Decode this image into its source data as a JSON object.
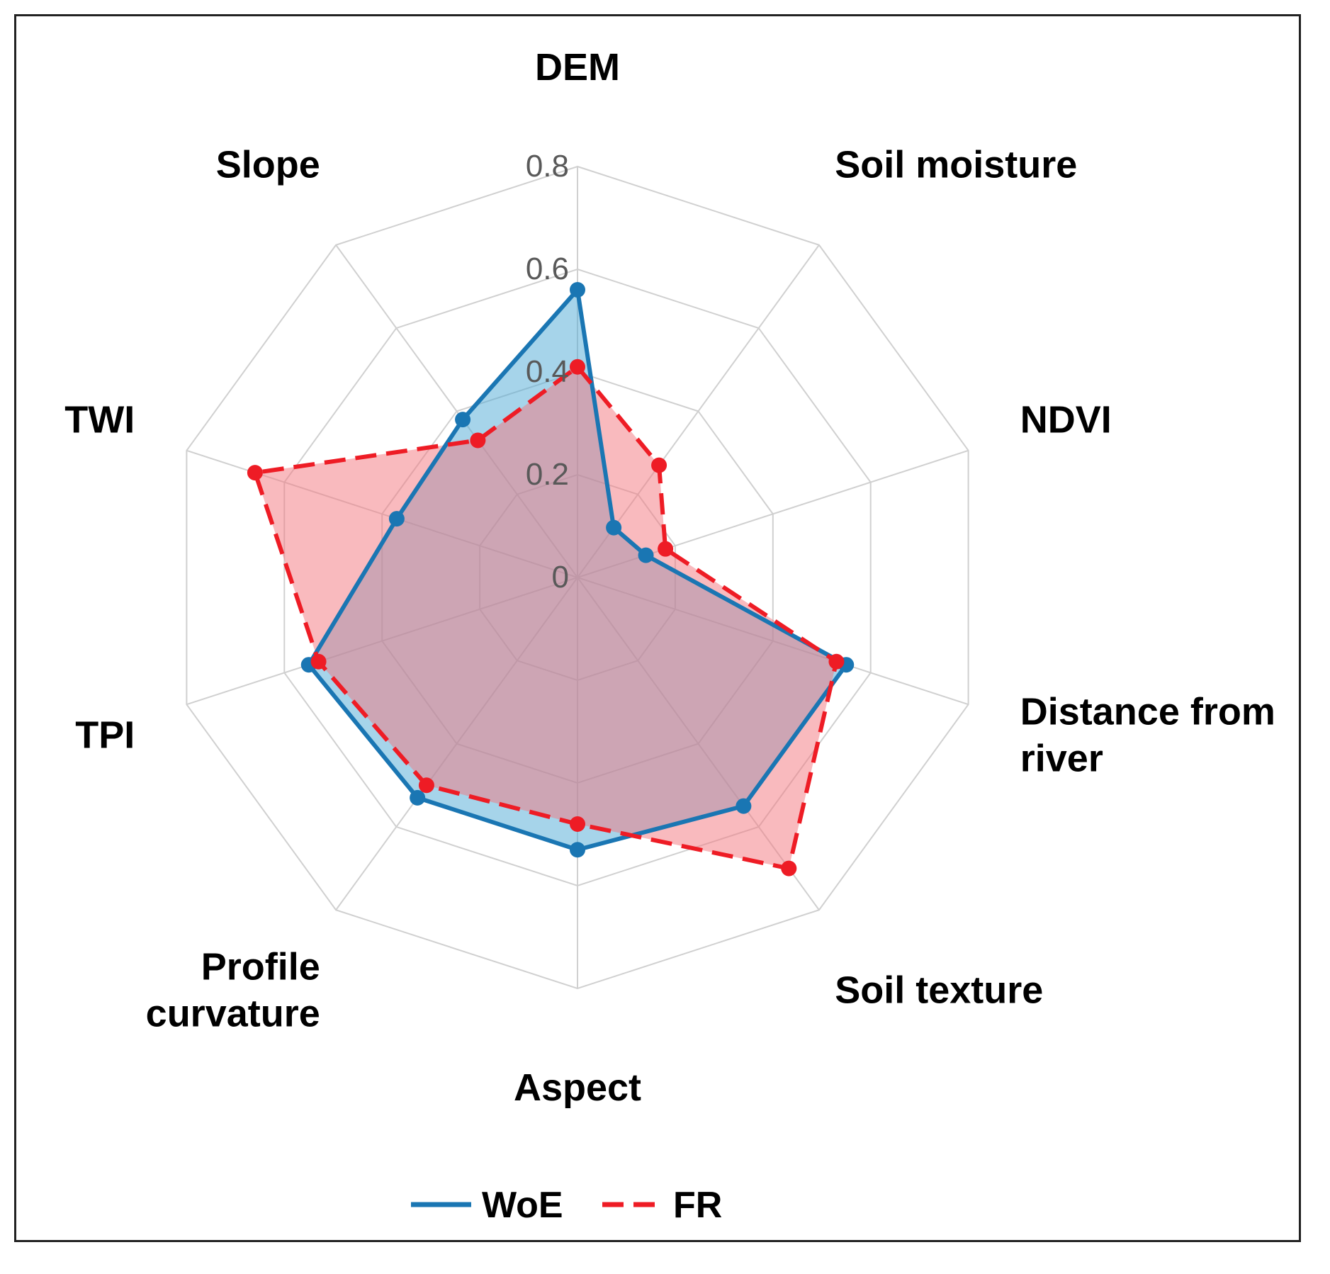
{
  "chart_data": {
    "type": "radar",
    "categories": [
      "DEM",
      "Soil moisture",
      "NDVI",
      "Distance from river",
      "Soil texture",
      "Aspect",
      "Profile curvature",
      "TPI",
      "TWI",
      "Slope"
    ],
    "category_lines": [
      [
        "DEM"
      ],
      [
        "Soil moisture"
      ],
      [
        "NDVI"
      ],
      [
        "Distance from",
        "river"
      ],
      [
        "Soil texture"
      ],
      [
        "Aspect"
      ],
      [
        "Profile",
        "curvature"
      ],
      [
        "TPI"
      ],
      [
        "TWI"
      ],
      [
        "Slope"
      ]
    ],
    "ticks": [
      "0",
      "0.2",
      "0.4",
      "0.6",
      "0.8"
    ],
    "rlim": [
      0,
      0.8
    ],
    "series": [
      {
        "name": "WoE",
        "values": [
          0.56,
          0.12,
          0.14,
          0.55,
          0.55,
          0.53,
          0.53,
          0.55,
          0.37,
          0.38
        ],
        "color": "#1a76b3",
        "fill": "#4ea9d5",
        "dashed": false
      },
      {
        "name": "FR",
        "values": [
          0.41,
          0.27,
          0.18,
          0.53,
          0.7,
          0.48,
          0.5,
          0.53,
          0.66,
          0.33
        ],
        "color": "#ee1c25",
        "fill": "#f4767d",
        "dashed": true
      }
    ],
    "legend_position": "bottom",
    "grid": true
  }
}
